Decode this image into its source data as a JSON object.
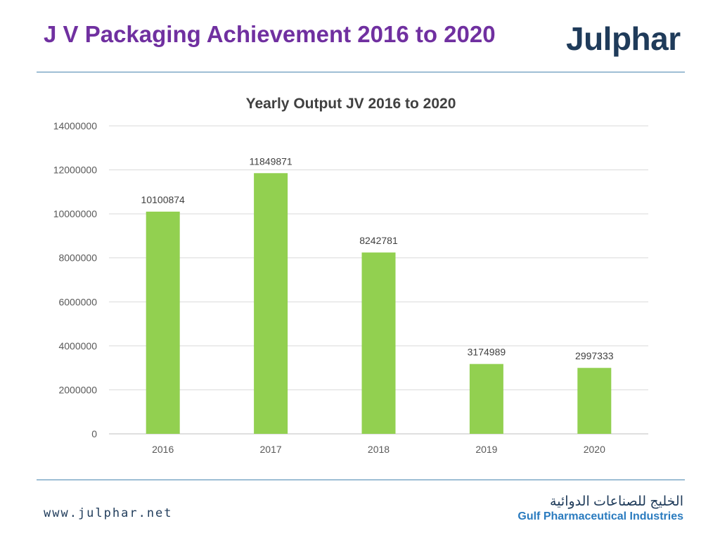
{
  "header": {
    "title": "J V Packaging Achievement 2016 to 2020",
    "logo_text": "Julphar"
  },
  "footer": {
    "website": "www.julphar.net",
    "company_arabic": "الخليج للصناعات الدوائية",
    "company_english": "Gulf Pharmaceutical Industries"
  },
  "colors": {
    "title": "#7030a0",
    "bar": "#92d050",
    "logo": "#1f3b5a",
    "rule": "#4a86b0"
  },
  "chart_data": {
    "type": "bar",
    "title": "Yearly Output JV 2016 to 2020",
    "categories": [
      "2016",
      "2017",
      "2018",
      "2019",
      "2020"
    ],
    "values": [
      10100874,
      11849871,
      8242781,
      3174989,
      2997333
    ],
    "ylim": [
      0,
      14000000
    ],
    "yticks": [
      0,
      2000000,
      4000000,
      6000000,
      8000000,
      10000000,
      12000000,
      14000000
    ],
    "grid": true,
    "legend": "none",
    "data_labels": true
  }
}
